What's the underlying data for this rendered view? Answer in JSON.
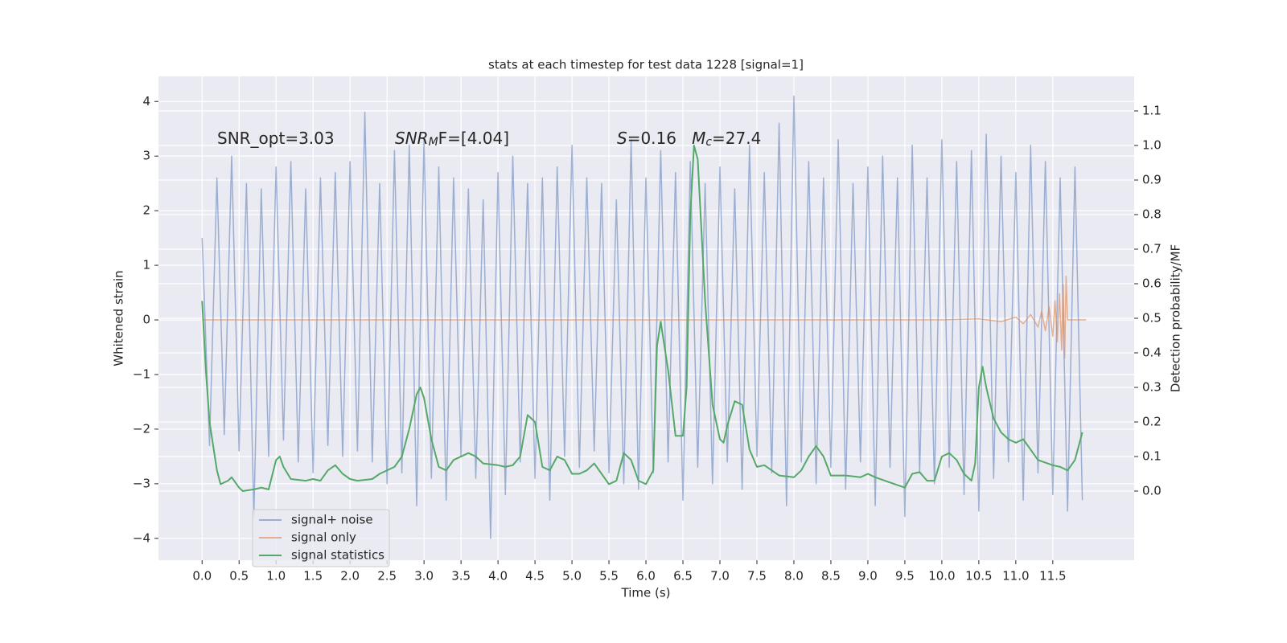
{
  "chart_data": {
    "type": "line",
    "title": "stats at each timestep for test data 1228 [signal=1]",
    "xlabel": "Time (s)",
    "ylabel": "Whitened strain",
    "y2label": "Detection probability/MF",
    "xlim": [
      -0.59,
      12.6
    ],
    "ylim": [
      -4.4,
      4.46
    ],
    "y2lim": [
      -0.2,
      1.2
    ],
    "xticks": [
      {
        "value": 0,
        "label": "0.0"
      },
      0.5,
      {
        "value": 1,
        "label": "1.0"
      },
      1.5,
      {
        "value": 2,
        "label": "2.0"
      },
      2.5,
      {
        "value": 3,
        "label": "3.0"
      },
      3.5,
      {
        "value": 4,
        "label": "4.0"
      },
      4.5,
      {
        "value": 5,
        "label": "5.0"
      },
      5.5,
      {
        "value": 6,
        "label": "6.0"
      },
      6.5,
      {
        "value": 7,
        "label": "7.0"
      },
      7.5,
      {
        "value": 8,
        "label": "8.0"
      },
      8.5,
      {
        "value": 9,
        "label": "9.0"
      },
      9.5,
      {
        "value": 10,
        "label": "10.0"
      },
      10.5,
      {
        "value": 11,
        "label": "11.0"
      },
      11.5
    ],
    "yticks": [
      {
        "value": -4,
        "label": "−4"
      },
      {
        "value": -3,
        "label": "−3"
      },
      {
        "value": -2,
        "label": "−2"
      },
      {
        "value": -1,
        "label": "−1"
      },
      0,
      1,
      2,
      3,
      4
    ],
    "y2ticks": [
      {
        "value": 0,
        "label": "0.0"
      },
      0.1,
      0.2,
      0.3,
      0.4,
      0.5,
      0.6,
      0.7,
      0.8,
      0.9,
      {
        "value": 1,
        "label": "1.0"
      },
      1.1
    ],
    "grid": true,
    "legend": "lower left",
    "annotations": [
      {
        "parts": [
          {
            "text": "SNR_opt=3.03"
          }
        ]
      },
      {
        "parts": [
          {
            "text": "SNR",
            "italic": true
          },
          {
            "text": "M",
            "italic": true,
            "sub": true
          },
          {
            "text": "F=[4.04]"
          }
        ]
      },
      {
        "parts": [
          {
            "text": "S",
            "italic": true
          },
          {
            "text": "=0.16   "
          },
          {
            "text": "M",
            "italic": true
          },
          {
            "text": "c",
            "italic": true,
            "sub": true
          },
          {
            "text": "=27.4"
          }
        ]
      }
    ],
    "series": [
      {
        "name": "signal+ noise",
        "color": "#4c72b0",
        "opacity": 0.5,
        "x": [
          0,
          0.1,
          0.2,
          0.3,
          0.4,
          0.5,
          0.6,
          0.7,
          0.8,
          0.9,
          1,
          1.1,
          1.2,
          1.3,
          1.4,
          1.5,
          1.6,
          1.7,
          1.8,
          1.9,
          2,
          2.1,
          2.2,
          2.3,
          2.4,
          2.5,
          2.6,
          2.7,
          2.8,
          2.9,
          3,
          3.1,
          3.2,
          3.3,
          3.4,
          3.5,
          3.6,
          3.7,
          3.8,
          3.9,
          4,
          4.1,
          4.2,
          4.3,
          4.4,
          4.5,
          4.6,
          4.7,
          4.8,
          4.9,
          5,
          5.1,
          5.2,
          5.3,
          5.4,
          5.5,
          5.6,
          5.7,
          5.8,
          5.9,
          6,
          6.1,
          6.2,
          6.3,
          6.4,
          6.5,
          6.6,
          6.7,
          6.8,
          6.9,
          7,
          7.1,
          7.2,
          7.3,
          7.4,
          7.5,
          7.6,
          7.7,
          7.8,
          7.9,
          8,
          8.1,
          8.2,
          8.3,
          8.4,
          8.5,
          8.6,
          8.7,
          8.8,
          8.9,
          9,
          9.1,
          9.2,
          9.3,
          9.4,
          9.5,
          9.6,
          9.7,
          9.8,
          9.9,
          10,
          10.1,
          10.2,
          10.3,
          10.4,
          10.5,
          10.6,
          10.7,
          10.8,
          10.9,
          11,
          11.1,
          11.2,
          11.3,
          11.4,
          11.5,
          11.6,
          11.7,
          11.8,
          11.9
        ],
        "values": [
          1.5,
          -2.3,
          2.6,
          -2.1,
          3.0,
          -2.4,
          2.5,
          -3.6,
          2.4,
          -2.5,
          2.8,
          -2.2,
          2.9,
          -2.6,
          2.4,
          -2.8,
          2.6,
          -2.3,
          2.7,
          -2.5,
          2.9,
          -2.4,
          3.8,
          -2.6,
          2.5,
          -3.0,
          3.1,
          -2.8,
          3.2,
          -3.4,
          3.3,
          -2.9,
          2.8,
          -3.3,
          2.6,
          -2.5,
          2.4,
          -2.9,
          2.2,
          -4.0,
          2.7,
          -3.2,
          3.0,
          -2.6,
          2.5,
          -2.9,
          2.6,
          -3.3,
          2.8,
          -2.5,
          3.2,
          -2.7,
          2.6,
          -2.4,
          2.5,
          -2.8,
          2.2,
          -3.0,
          3.3,
          -3.1,
          2.6,
          -2.8,
          3.1,
          -2.6,
          2.7,
          -3.3,
          2.9,
          -2.7,
          2.5,
          -3.0,
          2.8,
          -2.6,
          2.4,
          -3.1,
          3.2,
          -2.5,
          2.7,
          -2.8,
          3.6,
          -3.4,
          4.1,
          -2.6,
          2.9,
          -3.0,
          2.6,
          -2.7,
          3.3,
          -3.1,
          2.5,
          -2.6,
          2.8,
          -3.4,
          3.0,
          -2.7,
          2.6,
          -3.6,
          3.2,
          -2.8,
          2.6,
          -3.0,
          3.3,
          -2.7,
          2.9,
          -3.2,
          3.1,
          -3.5,
          3.4,
          -2.9,
          3.0,
          -2.6,
          2.7,
          -3.3,
          3.2,
          -2.8,
          2.9,
          -3.2,
          2.6,
          -3.5,
          2.8,
          -3.3
        ]
      },
      {
        "name": "signal only",
        "color": "#dd8452",
        "opacity": 0.6,
        "x": [
          0,
          10,
          10.5,
          10.8,
          11,
          11.1,
          11.2,
          11.3,
          11.35,
          11.4,
          11.45,
          11.5,
          11.53,
          11.56,
          11.59,
          11.62,
          11.64,
          11.66,
          11.68,
          11.7,
          11.95
        ],
        "values": [
          0,
          0,
          0.02,
          -0.03,
          0.05,
          -0.07,
          0.1,
          -0.13,
          0.16,
          -0.2,
          0.24,
          -0.3,
          0.35,
          -0.4,
          0.48,
          -0.55,
          0.65,
          -0.7,
          0.8,
          0,
          0
        ]
      },
      {
        "name": "signal statistics",
        "color": "#55a868",
        "opacity": 1,
        "axis": "y2",
        "x": [
          0,
          0.05,
          0.1,
          0.2,
          0.25,
          0.35,
          0.4,
          0.5,
          0.55,
          0.7,
          0.8,
          0.9,
          1,
          1.05,
          1.1,
          1.2,
          1.4,
          1.5,
          1.6,
          1.7,
          1.8,
          1.9,
          2,
          2.1,
          2.3,
          2.4,
          2.6,
          2.7,
          2.8,
          2.9,
          2.95,
          3,
          3.1,
          3.2,
          3.3,
          3.4,
          3.6,
          3.7,
          3.8,
          4,
          4.1,
          4.2,
          4.3,
          4.4,
          4.5,
          4.6,
          4.7,
          4.8,
          4.9,
          5,
          5.1,
          5.2,
          5.3,
          5.4,
          5.5,
          5.6,
          5.7,
          5.8,
          5.9,
          6,
          6.1,
          6.15,
          6.2,
          6.3,
          6.4,
          6.5,
          6.55,
          6.6,
          6.65,
          6.7,
          6.8,
          6.9,
          7,
          7.05,
          7.1,
          7.2,
          7.3,
          7.4,
          7.5,
          7.6,
          7.7,
          7.8,
          8,
          8.1,
          8.2,
          8.3,
          8.4,
          8.5,
          8.7,
          8.9,
          9,
          9.1,
          9.3,
          9.5,
          9.6,
          9.7,
          9.8,
          9.9,
          10,
          10.1,
          10.2,
          10.3,
          10.4,
          10.45,
          10.5,
          10.55,
          10.6,
          10.7,
          10.8,
          10.9,
          11,
          11.1,
          11.2,
          11.3,
          11.5,
          11.6,
          11.7,
          11.8,
          11.9
        ],
        "values": [
          0.55,
          0.35,
          0.2,
          0.06,
          0.02,
          0.03,
          0.04,
          0.01,
          0,
          0.005,
          0.01,
          0.005,
          0.09,
          0.1,
          0.07,
          0.035,
          0.03,
          0.035,
          0.03,
          0.06,
          0.075,
          0.05,
          0.035,
          0.03,
          0.035,
          0.05,
          0.07,
          0.1,
          0.18,
          0.28,
          0.3,
          0.27,
          0.15,
          0.07,
          0.06,
          0.09,
          0.11,
          0.1,
          0.08,
          0.075,
          0.07,
          0.075,
          0.1,
          0.22,
          0.2,
          0.07,
          0.06,
          0.1,
          0.09,
          0.05,
          0.05,
          0.06,
          0.08,
          0.05,
          0.02,
          0.03,
          0.11,
          0.09,
          0.03,
          0.02,
          0.06,
          0.42,
          0.49,
          0.35,
          0.16,
          0.16,
          0.3,
          0.8,
          1.0,
          0.96,
          0.55,
          0.25,
          0.15,
          0.14,
          0.19,
          0.26,
          0.25,
          0.12,
          0.07,
          0.075,
          0.06,
          0.045,
          0.04,
          0.06,
          0.1,
          0.13,
          0.1,
          0.045,
          0.045,
          0.04,
          0.05,
          0.04,
          0.025,
          0.01,
          0.05,
          0.055,
          0.03,
          0.03,
          0.1,
          0.11,
          0.09,
          0.05,
          0.03,
          0.08,
          0.3,
          0.36,
          0.3,
          0.21,
          0.17,
          0.15,
          0.14,
          0.15,
          0.12,
          0.09,
          0.075,
          0.07,
          0.06,
          0.09,
          0.17
        ]
      }
    ]
  }
}
